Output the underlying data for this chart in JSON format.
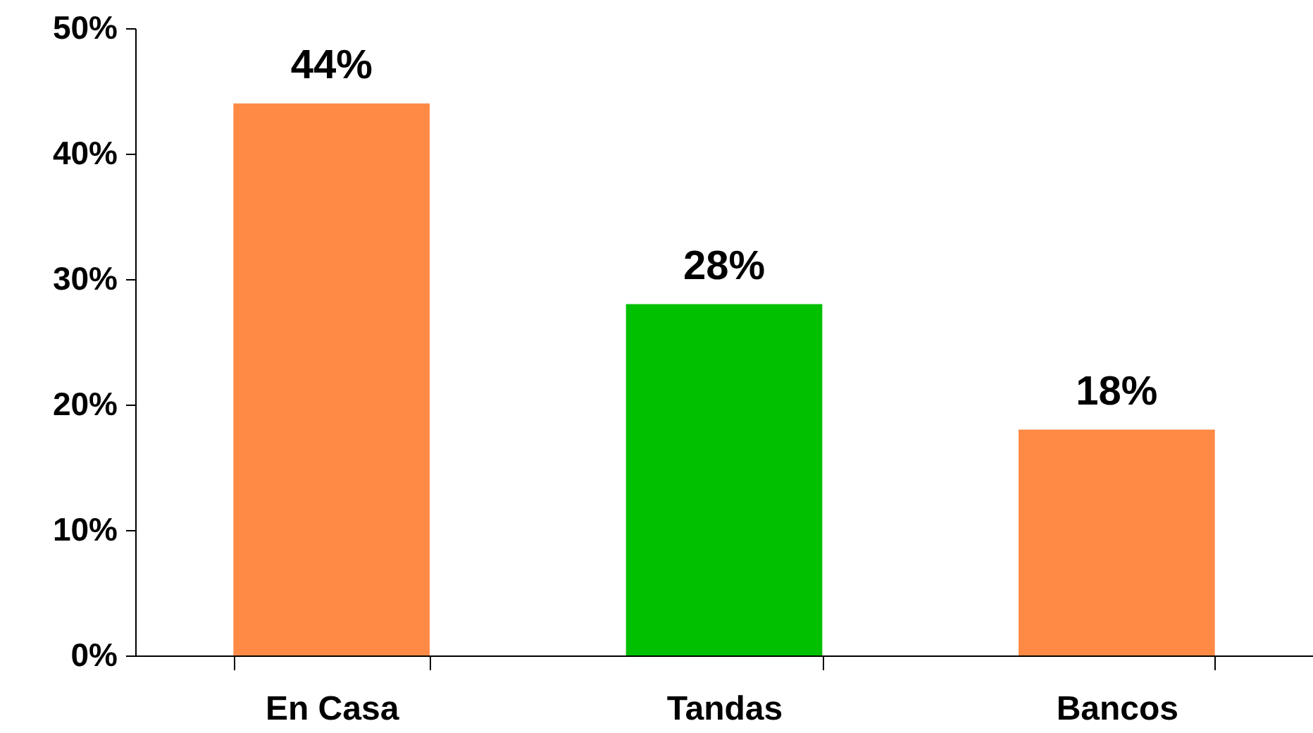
{
  "chart_data": {
    "type": "bar",
    "categories": [
      "En Casa",
      "Tandas",
      "Bancos"
    ],
    "values": [
      44,
      28,
      18
    ],
    "colors": [
      "#ff8a45",
      "#00c000",
      "#ff8a45"
    ],
    "value_labels": [
      "44%",
      "28%",
      "18%"
    ],
    "ylim": [
      0,
      50
    ],
    "yticks": [
      {
        "value": 0,
        "label": "0%"
      },
      {
        "value": 10,
        "label": "10%"
      },
      {
        "value": 20,
        "label": "20%"
      },
      {
        "value": 30,
        "label": "30%"
      },
      {
        "value": 40,
        "label": "40%"
      },
      {
        "value": 50,
        "label": "50%"
      }
    ],
    "grid": false
  }
}
